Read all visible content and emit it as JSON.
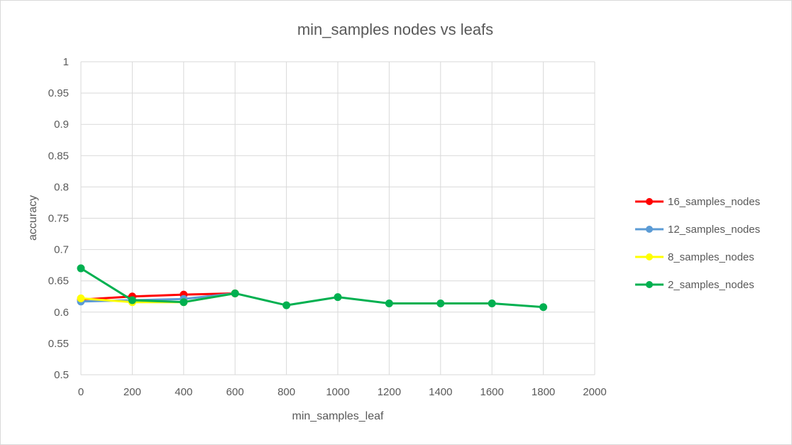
{
  "chart_data": {
    "type": "line",
    "title": "min_samples nodes vs leafs",
    "xlabel": "min_samples_leaf",
    "ylabel": "accuracy",
    "xlim": [
      0,
      2000
    ],
    "ylim": [
      0.5,
      1
    ],
    "x_ticks": [
      "0",
      "200",
      "400",
      "600",
      "800",
      "1000",
      "1200",
      "1400",
      "1600",
      "1800",
      "2000"
    ],
    "y_ticks": [
      "0.5",
      "0.55",
      "0.6",
      "0.65",
      "0.7",
      "0.75",
      "0.8",
      "0.85",
      "0.9",
      "0.95",
      "1"
    ],
    "grid": true,
    "legend_position": "right",
    "series": [
      {
        "name": "16_samples_nodes",
        "color": "#ff0000",
        "points": [
          [
            0,
            0.62
          ],
          [
            200,
            0.625
          ],
          [
            400,
            0.628
          ],
          [
            600,
            0.63
          ]
        ]
      },
      {
        "name": "12_samples_nodes",
        "color": "#5b9bd5",
        "points": [
          [
            0,
            0.617
          ],
          [
            200,
            0.619
          ],
          [
            400,
            0.621
          ],
          [
            600,
            0.63
          ]
        ]
      },
      {
        "name": "8_samples_nodes",
        "color": "#ffff00",
        "points": [
          [
            0,
            0.622
          ],
          [
            200,
            0.616
          ],
          [
            400,
            0.616
          ],
          [
            600,
            0.63
          ]
        ]
      },
      {
        "name": "2_samples_nodes",
        "color": "#00b050",
        "points": [
          [
            0,
            0.67
          ],
          [
            200,
            0.619
          ],
          [
            400,
            0.616
          ],
          [
            600,
            0.63
          ],
          [
            800,
            0.611
          ],
          [
            1000,
            0.624
          ],
          [
            1200,
            0.614
          ],
          [
            1400,
            0.614
          ],
          [
            1600,
            0.614
          ],
          [
            1800,
            0.608
          ]
        ]
      }
    ]
  }
}
